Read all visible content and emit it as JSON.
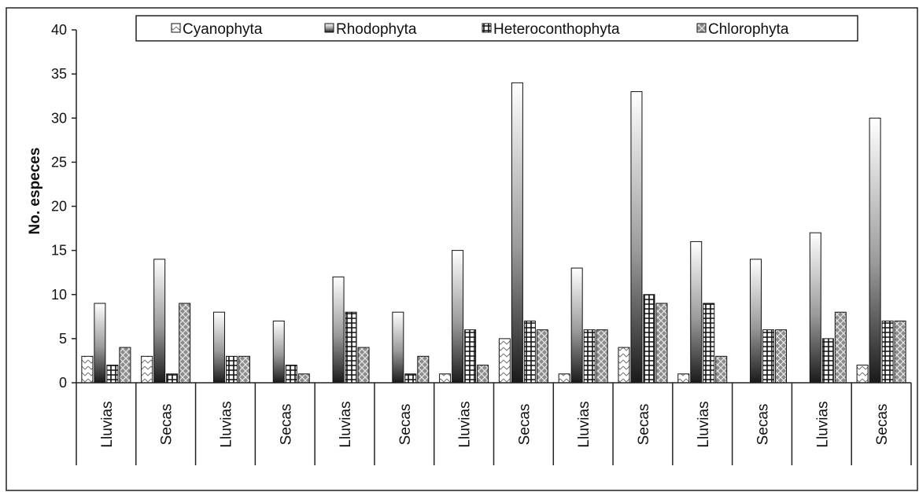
{
  "chart_data": {
    "type": "bar",
    "ylabel": "No. especes",
    "xlabel": "",
    "ylim": [
      0,
      40
    ],
    "yticks": [
      0,
      5,
      10,
      15,
      20,
      25,
      30,
      35,
      40
    ],
    "categories": [
      "Lluvias",
      "Secas",
      "Lluvias",
      "Secas",
      "Lluvias",
      "Secas",
      "Lluvias",
      "Secas",
      "Lluvias",
      "Secas",
      "Lluvias",
      "Secas",
      "Lluvias",
      "Secas"
    ],
    "legend_position": "top",
    "series": [
      {
        "name": "Cyanophyta",
        "values": [
          3,
          3,
          0,
          0,
          0,
          0,
          1,
          5,
          1,
          4,
          1,
          0,
          0,
          2
        ]
      },
      {
        "name": "Rhodophyta",
        "values": [
          9,
          14,
          8,
          7,
          12,
          8,
          15,
          34,
          13,
          33,
          16,
          14,
          17,
          30
        ]
      },
      {
        "name": "Heteroconthophyta",
        "values": [
          2,
          1,
          3,
          2,
          8,
          1,
          6,
          7,
          6,
          10,
          9,
          6,
          5,
          7
        ]
      },
      {
        "name": "Chlorophyta",
        "values": [
          4,
          9,
          3,
          1,
          4,
          3,
          2,
          6,
          6,
          9,
          3,
          6,
          8,
          7
        ]
      }
    ]
  }
}
